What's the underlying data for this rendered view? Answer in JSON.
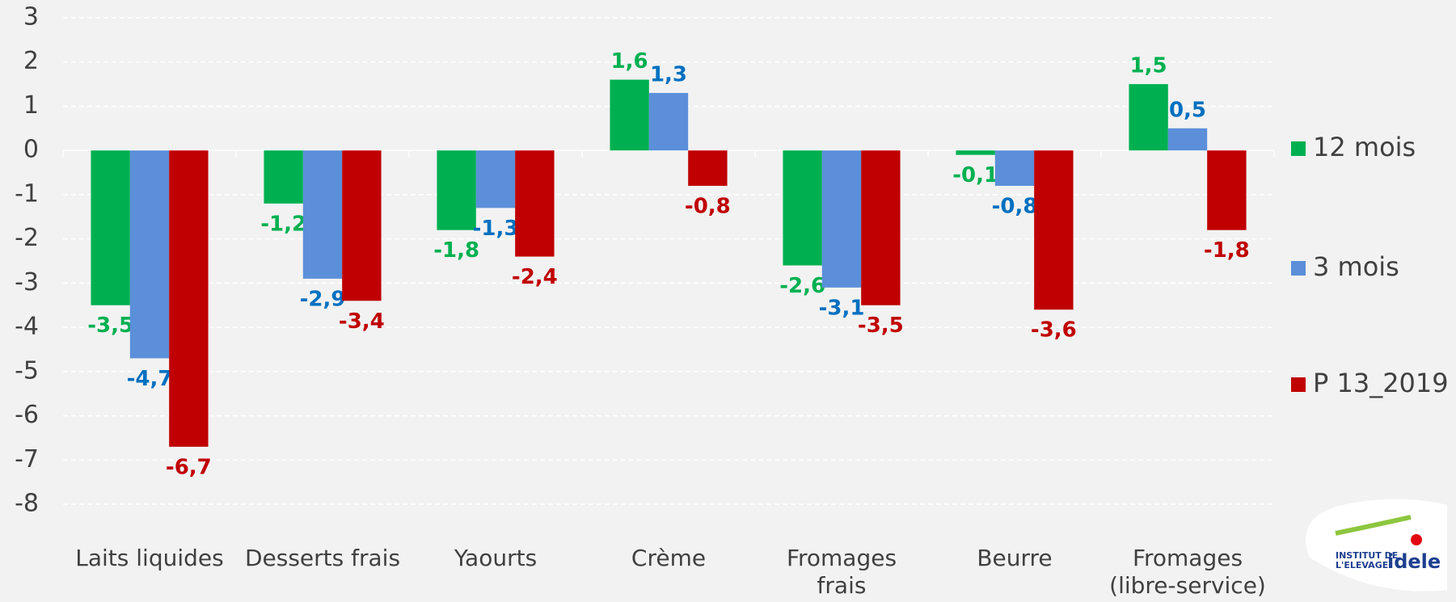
{
  "chart_data": {
    "type": "bar",
    "categories": [
      "Laits liquides",
      "Desserts frais",
      "Yaourts",
      "Crème",
      "Fromages frais",
      "Beurre",
      "Fromages (libre-service)"
    ],
    "series": [
      {
        "name": "12 mois",
        "color": "#00b050",
        "label_color": "#00b050",
        "values": [
          -3.5,
          -1.2,
          -1.8,
          1.6,
          -2.6,
          -0.1,
          1.5
        ],
        "value_labels": [
          "-3,5",
          "-1,2",
          "-1,8",
          "1,6",
          "-2,6",
          "-0,1",
          "1,5"
        ]
      },
      {
        "name": "3 mois",
        "color": "#5b8fd9",
        "label_color": "#0070c0",
        "values": [
          -4.7,
          -2.9,
          -1.3,
          1.3,
          -3.1,
          -0.8,
          0.5
        ],
        "value_labels": [
          "-4,7",
          "-2,9",
          "-1,3",
          "1,3",
          "-3,1",
          "-0,8",
          "0,5"
        ]
      },
      {
        "name": "P 13_2019",
        "color": "#c00000",
        "label_color": "#c00000",
        "values": [
          -6.7,
          -3.4,
          -2.4,
          -0.8,
          -3.5,
          -3.6,
          -1.8
        ],
        "value_labels": [
          "-6,7",
          "-3,4",
          "-2,4",
          "-0,8",
          "-3,5",
          "-3,6",
          "-1,8"
        ]
      }
    ],
    "ylim": [
      -8,
      3
    ],
    "yticks": [
      3,
      2,
      1,
      0,
      -1,
      -2,
      -3,
      -4,
      -5,
      -6,
      -7,
      -8
    ],
    "grid": true,
    "legend": "right"
  },
  "logo": {
    "line1": "INSTITUT DE",
    "line2": "L'ELEVAGE",
    "brand": "idele"
  }
}
